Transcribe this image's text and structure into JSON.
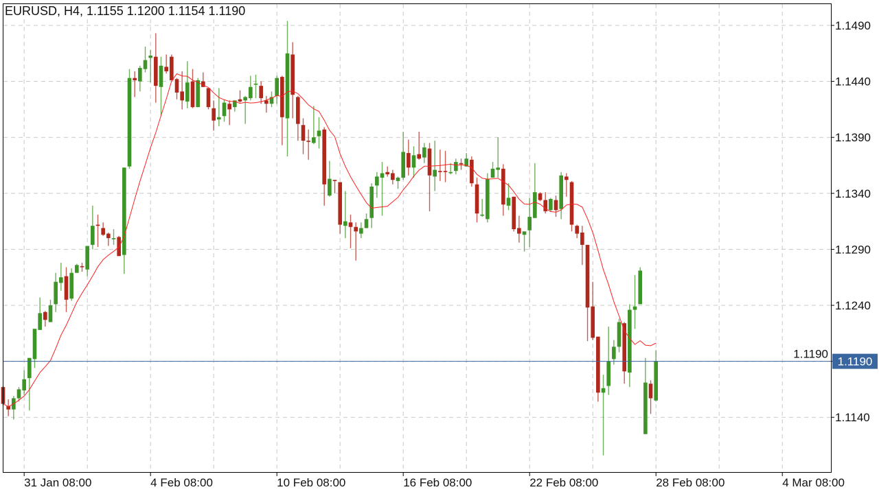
{
  "header": {
    "symbol": "EURUSD",
    "timeframe": "H4",
    "ohlc_text": "1.1155 1.1200 1.1154 1.1190",
    "title": "EURUSD, H4, 1.1155 1.1200 1.1154 1.1190"
  },
  "chart_data": {
    "type": "candlestick",
    "symbol": "EURUSD",
    "timeframe": "H4",
    "grid": true,
    "colors": {
      "up": "#3d9427",
      "down": "#b0281c",
      "ma": "#ff2020",
      "current_price": "#3a66a0",
      "grid": "#c8c8c8"
    },
    "ylim": [
      1.108,
      1.151
    ],
    "y_ticks": [
      "1.1490",
      "1.1440",
      "1.1390",
      "1.1340",
      "1.1290",
      "1.1240",
      "1.1190",
      "1.1140"
    ],
    "x_tick_labels": [
      "31 Jan 08:00",
      "4 Feb 08:00",
      "10 Feb 08:00",
      "16 Feb 08:00",
      "22 Feb 08:00",
      "28 Feb 08:00",
      "4 Mar 08:00"
    ],
    "current_price": "1.1190",
    "moving_average": {
      "type": "SMA",
      "period": 10,
      "source": "close"
    },
    "ohlc": [
      [
        1.1167,
        1.1168,
        1.115,
        1.1152
      ],
      [
        1.115,
        1.1156,
        1.1141,
        1.1147
      ],
      [
        1.1147,
        1.1159,
        1.1138,
        1.1157
      ],
      [
        1.1157,
        1.1167,
        1.1154,
        1.1165
      ],
      [
        1.1164,
        1.1182,
        1.116,
        1.1174
      ],
      [
        1.1175,
        1.1193,
        1.1146,
        1.1193
      ],
      [
        1.1192,
        1.1219,
        1.1184,
        1.1219
      ],
      [
        1.1218,
        1.1247,
        1.1218,
        1.1233
      ],
      [
        1.1234,
        1.1235,
        1.1221,
        1.1227
      ],
      [
        1.1225,
        1.1245,
        1.1225,
        1.124
      ],
      [
        1.1241,
        1.1269,
        1.1234,
        1.1261
      ],
      [
        1.126,
        1.1278,
        1.1253,
        1.1265
      ],
      [
        1.1266,
        1.1274,
        1.1234,
        1.1245
      ],
      [
        1.1246,
        1.1273,
        1.1244,
        1.1269
      ],
      [
        1.1269,
        1.1277,
        1.1269,
        1.1276
      ],
      [
        1.1275,
        1.1278,
        1.127,
        1.1274
      ],
      [
        1.1272,
        1.1293,
        1.1266,
        1.1293
      ],
      [
        1.1294,
        1.1329,
        1.129,
        1.1311
      ],
      [
        1.1312,
        1.1321,
        1.1292,
        1.1311
      ],
      [
        1.1309,
        1.1314,
        1.1302,
        1.1303
      ],
      [
        1.1304,
        1.1305,
        1.1293,
        1.13
      ],
      [
        1.1299,
        1.1308,
        1.1294,
        1.13
      ],
      [
        1.1301,
        1.1302,
        1.1284,
        1.1284
      ],
      [
        1.1285,
        1.1363,
        1.1268,
        1.1363
      ],
      [
        1.1364,
        1.1451,
        1.1362,
        1.1443
      ],
      [
        1.1443,
        1.1449,
        1.1426,
        1.1441
      ],
      [
        1.144,
        1.1454,
        1.1431,
        1.1452
      ],
      [
        1.1451,
        1.1471,
        1.1448,
        1.1459
      ],
      [
        1.1461,
        1.1468,
        1.1439,
        1.1463
      ],
      [
        1.1462,
        1.1483,
        1.1421,
        1.1436
      ],
      [
        1.1435,
        1.1462,
        1.141,
        1.1454
      ],
      [
        1.1453,
        1.1464,
        1.1447,
        1.1449
      ],
      [
        1.1462,
        1.1464,
        1.1441,
        1.1441
      ],
      [
        1.1442,
        1.1443,
        1.1424,
        1.143
      ],
      [
        1.1431,
        1.1449,
        1.1415,
        1.1423
      ],
      [
        1.1422,
        1.1458,
        1.1416,
        1.1439
      ],
      [
        1.144,
        1.1451,
        1.1416,
        1.1417
      ],
      [
        1.1417,
        1.1443,
        1.1417,
        1.1441
      ],
      [
        1.144,
        1.1448,
        1.1435,
        1.1435
      ],
      [
        1.1434,
        1.1434,
        1.1415,
        1.1417
      ],
      [
        1.1416,
        1.1423,
        1.1396,
        1.1405
      ],
      [
        1.1406,
        1.1434,
        1.14,
        1.1408
      ],
      [
        1.1409,
        1.1424,
        1.1404,
        1.1421
      ],
      [
        1.142,
        1.1423,
        1.1401,
        1.1415
      ],
      [
        1.1417,
        1.1423,
        1.1413,
        1.1423
      ],
      [
        1.1424,
        1.1432,
        1.1421,
        1.1422
      ],
      [
        1.1423,
        1.1427,
        1.1402,
        1.1426
      ],
      [
        1.1425,
        1.1445,
        1.1423,
        1.1435
      ],
      [
        1.1437,
        1.1446,
        1.1425,
        1.1438
      ],
      [
        1.1436,
        1.144,
        1.142,
        1.1425
      ],
      [
        1.1423,
        1.1427,
        1.1412,
        1.142
      ],
      [
        1.142,
        1.1431,
        1.1417,
        1.1426
      ],
      [
        1.1427,
        1.1445,
        1.142,
        1.1443
      ],
      [
        1.1444,
        1.1445,
        1.1383,
        1.1408
      ],
      [
        1.1407,
        1.1494,
        1.1373,
        1.1465
      ],
      [
        1.1464,
        1.1475,
        1.1407,
        1.1428
      ],
      [
        1.1426,
        1.1427,
        1.1387,
        1.1402
      ],
      [
        1.1401,
        1.1407,
        1.1375,
        1.1387
      ],
      [
        1.1387,
        1.1397,
        1.137,
        1.1386
      ],
      [
        1.1385,
        1.1418,
        1.1384,
        1.139
      ],
      [
        1.1391,
        1.1408,
        1.138,
        1.1396
      ],
      [
        1.1397,
        1.1399,
        1.1329,
        1.1348
      ],
      [
        1.1338,
        1.1369,
        1.1337,
        1.1353
      ],
      [
        1.1352,
        1.1352,
        1.134,
        1.1351
      ],
      [
        1.135,
        1.135,
        1.1304,
        1.1312
      ],
      [
        1.1311,
        1.1342,
        1.13,
        1.1315
      ],
      [
        1.1314,
        1.1321,
        1.1291,
        1.131
      ],
      [
        1.131,
        1.1314,
        1.128,
        1.1306
      ],
      [
        1.1304,
        1.1314,
        1.13,
        1.1309
      ],
      [
        1.1309,
        1.1322,
        1.1309,
        1.1317
      ],
      [
        1.1318,
        1.1349,
        1.1309,
        1.1346
      ],
      [
        1.1347,
        1.1359,
        1.1336,
        1.1355
      ],
      [
        1.1354,
        1.1368,
        1.132,
        1.1358
      ],
      [
        1.1359,
        1.1364,
        1.1355,
        1.1357
      ],
      [
        1.1358,
        1.1361,
        1.1348,
        1.1352
      ],
      [
        1.1351,
        1.1355,
        1.1344,
        1.1354
      ],
      [
        1.1354,
        1.1395,
        1.1352,
        1.1377
      ],
      [
        1.1376,
        1.1388,
        1.1356,
        1.1363
      ],
      [
        1.1363,
        1.1382,
        1.1354,
        1.1374
      ],
      [
        1.1375,
        1.1395,
        1.137,
        1.1371
      ],
      [
        1.1372,
        1.1385,
        1.1367,
        1.1381
      ],
      [
        1.138,
        1.1385,
        1.1324,
        1.1356
      ],
      [
        1.1355,
        1.1387,
        1.1342,
        1.1361
      ],
      [
        1.136,
        1.1379,
        1.1351,
        1.1359
      ],
      [
        1.136,
        1.1378,
        1.135,
        1.1359
      ],
      [
        1.1358,
        1.1367,
        1.1357,
        1.1359
      ],
      [
        1.136,
        1.1371,
        1.1357,
        1.1368
      ],
      [
        1.1367,
        1.1371,
        1.1361,
        1.1366
      ],
      [
        1.1364,
        1.1376,
        1.1364,
        1.1371
      ],
      [
        1.137,
        1.1373,
        1.1346,
        1.1349
      ],
      [
        1.1348,
        1.1354,
        1.1314,
        1.1322
      ],
      [
        1.132,
        1.1335,
        1.1319,
        1.1321
      ],
      [
        1.1317,
        1.1358,
        1.1314,
        1.1353
      ],
      [
        1.1354,
        1.1368,
        1.1354,
        1.1362
      ],
      [
        1.1361,
        1.139,
        1.1354,
        1.1363
      ],
      [
        1.1362,
        1.1366,
        1.132,
        1.133
      ],
      [
        1.1329,
        1.1349,
        1.1325,
        1.1336
      ],
      [
        1.1337,
        1.1337,
        1.1306,
        1.1308
      ],
      [
        1.1309,
        1.132,
        1.1296,
        1.1304
      ],
      [
        1.1303,
        1.1306,
        1.1288,
        1.1306
      ],
      [
        1.1307,
        1.1336,
        1.1292,
        1.1319
      ],
      [
        1.1318,
        1.1367,
        1.1318,
        1.1341
      ],
      [
        1.134,
        1.1341,
        1.1333,
        1.1334
      ],
      [
        1.1334,
        1.1341,
        1.1322,
        1.1324
      ],
      [
        1.1325,
        1.1336,
        1.1324,
        1.1335
      ],
      [
        1.1334,
        1.1338,
        1.1319,
        1.1325
      ],
      [
        1.1326,
        1.1359,
        1.1317,
        1.1356
      ],
      [
        1.1355,
        1.1358,
        1.1337,
        1.1352
      ],
      [
        1.135,
        1.1351,
        1.1306,
        1.1312
      ],
      [
        1.1311,
        1.1312,
        1.13,
        1.1304
      ],
      [
        1.1305,
        1.1311,
        1.1276,
        1.1294
      ],
      [
        1.1294,
        1.1294,
        1.1208,
        1.1238
      ],
      [
        1.1239,
        1.1261,
        1.1209,
        1.1211
      ],
      [
        1.1212,
        1.1212,
        1.1154,
        1.1162
      ],
      [
        1.1162,
        1.1178,
        1.1106,
        1.1166
      ],
      [
        1.1168,
        1.1221,
        1.116,
        1.119
      ],
      [
        1.1192,
        1.1209,
        1.1187,
        1.1203
      ],
      [
        1.1203,
        1.1228,
        1.1198,
        1.1225
      ],
      [
        1.1224,
        1.1225,
        1.117,
        1.1181
      ],
      [
        1.118,
        1.1241,
        1.1167,
        1.1236
      ],
      [
        1.1236,
        1.1267,
        1.1219,
        1.1239
      ],
      [
        1.1241,
        1.1274,
        1.1241,
        1.1271
      ],
      [
        1.1125,
        1.1193,
        1.1125,
        1.1171
      ],
      [
        1.117,
        1.1173,
        1.1143,
        1.1157
      ],
      [
        1.1155,
        1.12,
        1.1154,
        1.119
      ]
    ]
  }
}
